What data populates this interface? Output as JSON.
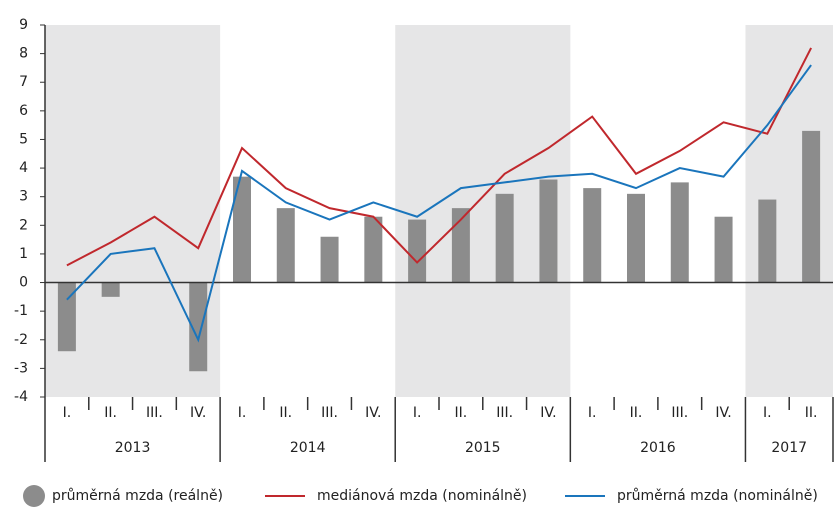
{
  "chart_data": {
    "type": "bar_line",
    "groups": [
      {
        "label": "2013",
        "categories": [
          "I.",
          "II.",
          "III.",
          "IV."
        ]
      },
      {
        "label": "2014",
        "categories": [
          "I.",
          "II.",
          "III.",
          "IV."
        ]
      },
      {
        "label": "2015",
        "categories": [
          "I.",
          "II.",
          "III.",
          "IV."
        ]
      },
      {
        "label": "2016",
        "categories": [
          "I.",
          "II.",
          "III.",
          "IV."
        ]
      },
      {
        "label": "2017",
        "categories": [
          "I.",
          "II."
        ]
      }
    ],
    "series": [
      {
        "name": "průměrná mzda (reálně)",
        "kind": "bar",
        "color": "#8c8c8c",
        "values": [
          -2.4,
          -0.5,
          0,
          -3.1,
          3.7,
          2.6,
          1.6,
          2.3,
          2.2,
          2.6,
          3.1,
          3.6,
          3.3,
          3.1,
          3.5,
          2.3,
          2.9,
          5.3
        ]
      },
      {
        "name": "mediánová mzda (nominálně)",
        "kind": "line",
        "color": "#c0282d",
        "values": [
          0.6,
          1.4,
          2.3,
          1.2,
          4.7,
          3.3,
          2.6,
          2.3,
          0.7,
          2.2,
          3.8,
          4.7,
          5.8,
          3.8,
          4.6,
          5.6,
          5.2,
          8.2
        ]
      },
      {
        "name": "průměrná mzda (nominálně)",
        "kind": "line",
        "color": "#1a75bc",
        "values": [
          -0.6,
          1.0,
          1.2,
          -2.0,
          3.9,
          2.8,
          2.2,
          2.8,
          2.3,
          3.3,
          3.5,
          3.7,
          3.8,
          3.3,
          4.0,
          3.7,
          5.5,
          7.6
        ]
      }
    ],
    "ylim": [
      -4,
      9
    ],
    "yticks": [
      -4,
      -3,
      -2,
      -1,
      0,
      1,
      2,
      3,
      4,
      5,
      6,
      7,
      8,
      9
    ]
  }
}
